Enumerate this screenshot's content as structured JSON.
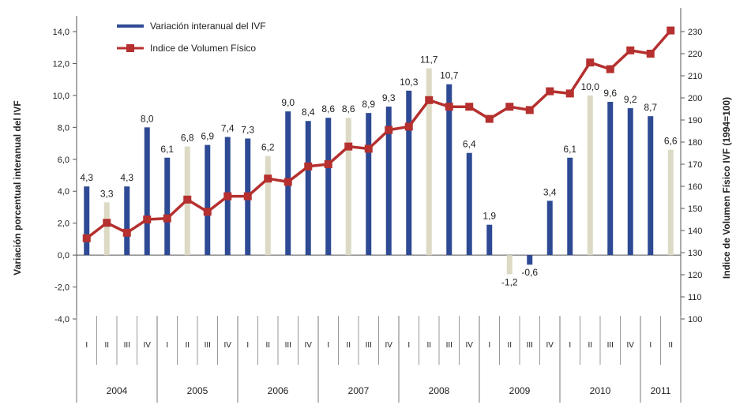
{
  "chart_data": {
    "type": "bar+line",
    "title": "",
    "ylabel_left": "Variación porcentual interanual del IVF",
    "ylabel_right": "Indice de Volumen Físico IVF (1994=100)",
    "ylim_left": [
      -4,
      14
    ],
    "ylim_right": [
      100,
      230
    ],
    "yticks_left": [
      "-4,0",
      "-2,0",
      "0,0",
      "2,0",
      "4,0",
      "6,0",
      "8,0",
      "10,0",
      "12,0",
      "14,0"
    ],
    "yticks_right": [
      "100",
      "110",
      "120",
      "130",
      "140",
      "150",
      "160",
      "170",
      "180",
      "190",
      "200",
      "210",
      "220",
      "230"
    ],
    "legend": {
      "placement": "top-left"
    },
    "quarters": [
      "I",
      "II",
      "III",
      "IV",
      "I",
      "II",
      "III",
      "IV",
      "I",
      "II",
      "III",
      "IV",
      "I",
      "II",
      "III",
      "IV",
      "I",
      "II",
      "III",
      "IV",
      "I",
      "II",
      "III",
      "IV",
      "I",
      "II",
      "III",
      "IV",
      "I",
      "II"
    ],
    "years": [
      {
        "label": "2004",
        "quarters": 4
      },
      {
        "label": "2005",
        "quarters": 4
      },
      {
        "label": "2006",
        "quarters": 4
      },
      {
        "label": "2007",
        "quarters": 4
      },
      {
        "label": "2008",
        "quarters": 4
      },
      {
        "label": "2009",
        "quarters": 4
      },
      {
        "label": "2010",
        "quarters": 4
      },
      {
        "label": "2011",
        "quarters": 2
      }
    ],
    "series": [
      {
        "name": "Variación interanual del IVF",
        "type": "bar",
        "axis": "left",
        "color": "#2e4a94",
        "alt_color": "#dcdac4",
        "alt_every_second_quarter": true,
        "values": [
          4.3,
          3.3,
          4.3,
          8.0,
          6.1,
          6.8,
          6.9,
          7.4,
          7.3,
          6.2,
          9.0,
          8.4,
          8.6,
          8.6,
          8.9,
          9.3,
          10.3,
          11.7,
          10.7,
          6.4,
          1.9,
          -1.2,
          -0.6,
          3.4,
          6.1,
          10.0,
          9.6,
          9.2,
          8.7,
          6.6
        ],
        "labels": [
          "4,3",
          "3,3",
          "4,3",
          "8,0",
          "6,1",
          "6,8",
          "6,9",
          "7,4",
          "7,3",
          "6,2",
          "9,0",
          "8,4",
          "8,6",
          "8,6",
          "8,9",
          "9,3",
          "10,3",
          "11,7",
          "10,7",
          "6,4",
          "1,9",
          "-1,2",
          "-0,6",
          "3,4",
          "6,1",
          "10,0",
          "9,6",
          "9,2",
          "8,7",
          "6,6"
        ]
      },
      {
        "name": "Indice de Volumen Físico",
        "type": "line",
        "axis": "right",
        "color": "#b5302f",
        "values": [
          136.5,
          143.5,
          139,
          145,
          145.5,
          154,
          148.5,
          155.5,
          155.5,
          163.5,
          162,
          169,
          170,
          178,
          177,
          185.5,
          187,
          199,
          196,
          196,
          190.5,
          196,
          194.5,
          203,
          202,
          216,
          213,
          221.5,
          220,
          230.5
        ]
      }
    ]
  }
}
